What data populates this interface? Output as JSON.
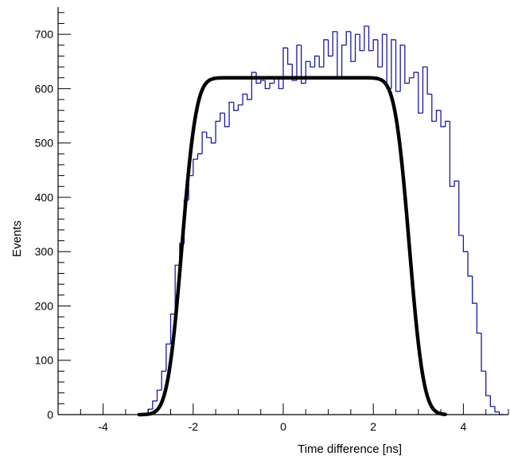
{
  "chart_data": {
    "type": "histogram",
    "title": "",
    "xlabel": "Time difference [ns]",
    "ylabel": "Events",
    "xlim": [
      -5,
      5
    ],
    "ylim": [
      0,
      750
    ],
    "xticks": [
      -4,
      -2,
      0,
      2,
      4
    ],
    "xtick_labels": [
      "-4",
      "-2",
      "0",
      "2",
      "4"
    ],
    "yticks": [
      0,
      100,
      200,
      300,
      400,
      500,
      600,
      700
    ],
    "ytick_labels": [
      "0",
      "100",
      "200",
      "300",
      "400",
      "500",
      "600",
      "700"
    ],
    "grid": false,
    "legend": "none",
    "histogram": {
      "color": "#1a1aa0",
      "bin_width": 0.1,
      "bin_edges_start": -3.2,
      "values": [
        0,
        2,
        10,
        25,
        45,
        80,
        130,
        185,
        275,
        315,
        395,
        440,
        470,
        480,
        520,
        510,
        500,
        540,
        555,
        530,
        575,
        560,
        570,
        590,
        580,
        630,
        610,
        615,
        600,
        610,
        620,
        600,
        675,
        645,
        615,
        680,
        610,
        650,
        640,
        660,
        640,
        690,
        660,
        705,
        620,
        680,
        705,
        650,
        700,
        670,
        715,
        670,
        690,
        640,
        700,
        600,
        690,
        595,
        680,
        610,
        620,
        630,
        555,
        640,
        590,
        540,
        560,
        530,
        540,
        420,
        430,
        330,
        300,
        255,
        205,
        150,
        80,
        35,
        15,
        5,
        0
      ]
    },
    "fit": {
      "color": "#000000",
      "model": "plateau with smooth edges",
      "plateau": 620,
      "left_edge": -2.25,
      "right_edge": 2.8,
      "edge_width": 0.25,
      "x_range": [
        -3.2,
        3.6
      ]
    }
  }
}
